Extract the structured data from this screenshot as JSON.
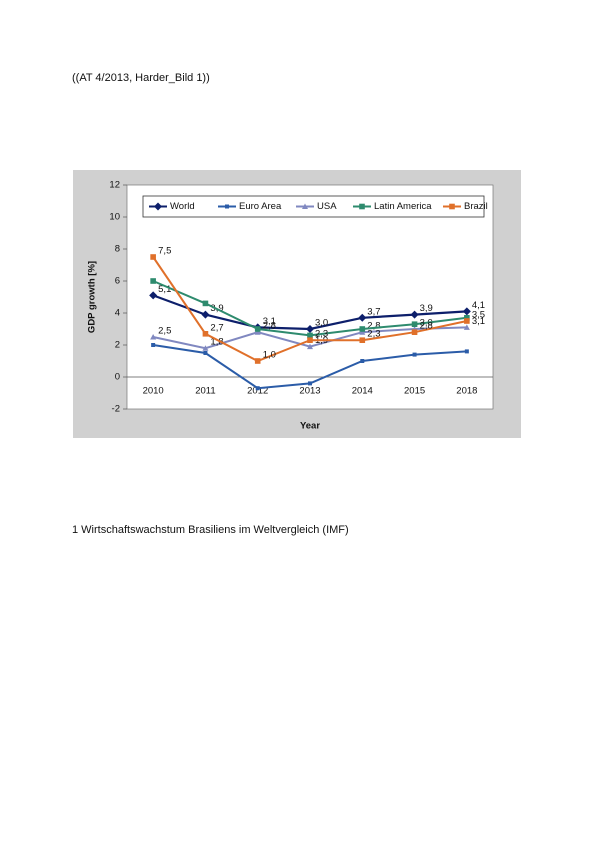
{
  "header": {
    "text": "((AT 4/2013, Harder_Bild 1))"
  },
  "chart_data": {
    "type": "line",
    "xlabel": "Year",
    "ylabel": "GDP growth [%]",
    "categories": [
      "2010",
      "2011",
      "2012",
      "2013",
      "2014",
      "2015",
      "2018"
    ],
    "ylim": [
      -2,
      12
    ],
    "yticks": [
      -2,
      0,
      2,
      4,
      6,
      8,
      10,
      12
    ],
    "legend": "top",
    "series": [
      {
        "name": "World",
        "color": "#0d1f6b",
        "marker": "diamond",
        "values": [
          5.1,
          3.9,
          3.1,
          3.0,
          3.7,
          3.9,
          4.1
        ],
        "value_labels": [
          "5,1",
          "3,9",
          "3,1",
          "3,0",
          "3,7",
          "3,9",
          "4,1"
        ]
      },
      {
        "name": "Euro Area",
        "color": "#2b5ca8",
        "marker": "square",
        "values": [
          2.0,
          1.5,
          -0.7,
          -0.4,
          1.0,
          1.4,
          1.6
        ]
      },
      {
        "name": "USA",
        "color": "#8088c0",
        "marker": "triangle",
        "values": [
          2.5,
          1.8,
          2.8,
          1.9,
          2.8,
          3.0,
          3.1
        ],
        "value_labels": [
          "2,5",
          "1,8",
          "2,8",
          "1,9",
          "2,8",
          "3,0",
          "3,1"
        ]
      },
      {
        "name": "Latin America",
        "color": "#2e8b6e",
        "marker": "square",
        "values": [
          6.0,
          4.6,
          3.0,
          2.6,
          3.0,
          3.3,
          3.7
        ]
      },
      {
        "name": "Brazil",
        "color": "#e0702a",
        "marker": "square",
        "values": [
          7.5,
          2.7,
          1.0,
          2.3,
          2.3,
          2.8,
          3.5
        ],
        "value_labels": [
          "7,5",
          "2,7",
          "1,0",
          "2,3",
          "2,3",
          "2,8",
          "3,5"
        ]
      }
    ]
  },
  "caption": {
    "text": "1 Wirtschaftswachstum Brasiliens im Weltvergleich (IMF)"
  }
}
